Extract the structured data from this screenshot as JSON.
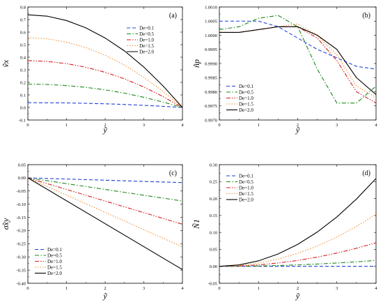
{
  "figure": {
    "background": "#ffffff",
    "panel_count": 4
  },
  "chart_data": [
    {
      "type": "line",
      "panel_label": "(a)",
      "xlabel": "ỹ",
      "ylabel": "ṽx",
      "xlim": [
        0,
        4
      ],
      "ylim": [
        -0.1,
        0.8
      ],
      "xticks": [
        "0",
        "1",
        "2",
        "3",
        "4"
      ],
      "yticks": [
        "-0.1",
        "0.0",
        "0.1",
        "0.2",
        "0.3",
        "0.4",
        "0.5",
        "0.6",
        "0.7",
        "0.8"
      ],
      "grid": false,
      "legend_position": "top-right",
      "series": [
        {
          "name": "De=0.1",
          "color": "#1f3fd6",
          "dash": "dashed",
          "x": [
            0,
            0.5,
            1,
            1.5,
            2,
            2.5,
            3,
            3.5,
            4
          ],
          "y": [
            0.038,
            0.037,
            0.036,
            0.033,
            0.029,
            0.024,
            0.017,
            0.009,
            0.0
          ]
        },
        {
          "name": "De=0.5",
          "color": "#1a8a1a",
          "dash": "dashdot",
          "x": [
            0,
            0.5,
            1,
            1.5,
            2,
            2.5,
            3,
            3.5,
            4
          ],
          "y": [
            0.186,
            0.183,
            0.174,
            0.16,
            0.14,
            0.114,
            0.081,
            0.043,
            0.0
          ]
        },
        {
          "name": "De=1.0",
          "color": "#d81e1e",
          "dash": "dashdotdot",
          "x": [
            0,
            0.5,
            1,
            1.5,
            2,
            2.5,
            3,
            3.5,
            4
          ],
          "y": [
            0.373,
            0.367,
            0.349,
            0.32,
            0.28,
            0.228,
            0.163,
            0.086,
            0.0
          ]
        },
        {
          "name": "De=1.5",
          "color": "#f28c28",
          "dash": "dotted",
          "x": [
            0,
            0.5,
            1,
            1.5,
            2,
            2.5,
            3,
            3.5,
            4
          ],
          "y": [
            0.556,
            0.547,
            0.52,
            0.476,
            0.415,
            0.337,
            0.24,
            0.127,
            0.0
          ]
        },
        {
          "name": "De=2.0",
          "color": "#000000",
          "dash": "solid",
          "x": [
            0,
            0.5,
            1,
            1.5,
            2,
            2.5,
            3,
            3.5,
            4
          ],
          "y": [
            0.738,
            0.727,
            0.692,
            0.634,
            0.553,
            0.45,
            0.322,
            0.171,
            0.0
          ]
        }
      ]
    },
    {
      "type": "line",
      "panel_label": "(b)",
      "xlabel": "ỹ",
      "ylabel": "ñp",
      "xlim": [
        0,
        4
      ],
      "ylim": [
        0.997,
        1.001
      ],
      "xticks": [
        "0",
        "1",
        "2",
        "3",
        "4"
      ],
      "yticks": [
        "0.9970",
        "0.9975",
        "0.9980",
        "0.9985",
        "0.9990",
        "0.9995",
        "1.0000",
        "1.0005",
        "1.0010"
      ],
      "grid": false,
      "legend_position": "bottom-left",
      "series": [
        {
          "name": "De=0.1",
          "color": "#1f3fd6",
          "dash": "dashed",
          "x": [
            0,
            0.5,
            1,
            1.5,
            2,
            2.5,
            3,
            3.5,
            4
          ],
          "y": [
            1.0005,
            1.0005,
            1.0005,
            1.0003,
            0.9999,
            0.9995,
            0.9992,
            0.9989,
            0.9988
          ]
        },
        {
          "name": "De=0.5",
          "color": "#1a8a1a",
          "dash": "dashdot",
          "x": [
            0,
            0.5,
            1,
            1.5,
            2,
            2.5,
            3,
            3.5,
            4
          ],
          "y": [
            1.0002,
            1.0003,
            1.0006,
            1.0007,
            1.0003,
            0.9988,
            0.9976,
            0.9976,
            0.9982
          ]
        },
        {
          "name": "De=1.0",
          "color": "#d81e1e",
          "dash": "dashdotdot",
          "x": [
            0,
            0.5,
            1,
            1.5,
            2,
            2.5,
            3,
            3.5,
            4
          ],
          "y": [
            1.0001,
            1.0001,
            1.0002,
            1.0003,
            1.0003,
            0.9999,
            0.9991,
            0.998,
            0.9976
          ]
        },
        {
          "name": "De=1.5",
          "color": "#f28c28",
          "dash": "dotted",
          "x": [
            0,
            0.5,
            1,
            1.5,
            2,
            2.5,
            3,
            3.5,
            4
          ],
          "y": [
            1.0001,
            1.0001,
            1.0002,
            1.0003,
            1.0004,
            1.0,
            0.9993,
            0.9982,
            0.9978
          ]
        },
        {
          "name": "De=2.0",
          "color": "#000000",
          "dash": "solid",
          "x": [
            0,
            0.5,
            1,
            1.5,
            2,
            2.5,
            3,
            3.5,
            4
          ],
          "y": [
            1.0001,
            1.0001,
            1.0002,
            1.0003,
            1.0003,
            1.0,
            0.9995,
            0.9985,
            0.9979
          ]
        }
      ]
    },
    {
      "type": "line",
      "panel_label": "(c)",
      "xlabel": "ỹ",
      "ylabel": "σ̃xy",
      "xlim": [
        0,
        4
      ],
      "ylim": [
        -0.4,
        0.05
      ],
      "xticks": [
        "0",
        "1",
        "2",
        "3",
        "4"
      ],
      "yticks": [
        "-0.40",
        "-0.35",
        "-0.30",
        "-0.25",
        "-0.20",
        "-0.15",
        "-0.10",
        "-0.05",
        "0.00",
        "0.05"
      ],
      "grid": false,
      "legend_position": "bottom-left",
      "series": [
        {
          "name": "De=0.1",
          "color": "#1f3fd6",
          "dash": "dashed",
          "x": [
            0,
            4
          ],
          "y": [
            0.0,
            -0.018
          ]
        },
        {
          "name": "De=0.5",
          "color": "#1a8a1a",
          "dash": "dashdot",
          "x": [
            0,
            4
          ],
          "y": [
            0.0,
            -0.088
          ]
        },
        {
          "name": "De=1.0",
          "color": "#d81e1e",
          "dash": "dashdotdot",
          "x": [
            0,
            4
          ],
          "y": [
            0.0,
            -0.176
          ]
        },
        {
          "name": "De=1.5",
          "color": "#f28c28",
          "dash": "dotted",
          "x": [
            0,
            4
          ],
          "y": [
            0.0,
            -0.262
          ]
        },
        {
          "name": "De=2.0",
          "color": "#000000",
          "dash": "solid",
          "x": [
            0,
            4
          ],
          "y": [
            0.0,
            -0.348
          ]
        }
      ]
    },
    {
      "type": "line",
      "panel_label": "(d)",
      "xlabel": "ỹ",
      "ylabel": "Ñ1",
      "xlim": [
        0,
        4
      ],
      "ylim": [
        -0.05,
        0.3
      ],
      "xticks": [
        "0",
        "1",
        "2",
        "3",
        "4"
      ],
      "yticks": [
        "-0.05",
        "0.00",
        "0.05",
        "0.10",
        "0.15",
        "0.20",
        "0.25",
        "0.30"
      ],
      "grid": false,
      "legend_position": "top-left",
      "series": [
        {
          "name": "De=0.1",
          "color": "#1f3fd6",
          "dash": "dashed",
          "x": [
            0,
            0.5,
            1,
            1.5,
            2,
            2.5,
            3,
            3.5,
            4
          ],
          "y": [
            0.0,
            0.0,
            0.0,
            0.0,
            0.0,
            0.0,
            0.0,
            0.0,
            0.0
          ]
        },
        {
          "name": "De=0.5",
          "color": "#1a8a1a",
          "dash": "dashdot",
          "x": [
            0,
            0.5,
            1,
            1.5,
            2,
            2.5,
            3,
            3.5,
            4
          ],
          "y": [
            0.0,
            0.0003,
            0.0011,
            0.0024,
            0.0043,
            0.0068,
            0.0098,
            0.0133,
            0.0174
          ]
        },
        {
          "name": "De=1.0",
          "color": "#d81e1e",
          "dash": "dashdotdot",
          "x": [
            0,
            0.5,
            1,
            1.5,
            2,
            2.5,
            3,
            3.5,
            4
          ],
          "y": [
            0.0,
            0.0011,
            0.0043,
            0.0098,
            0.0174,
            0.0272,
            0.0392,
            0.0533,
            0.0696
          ]
        },
        {
          "name": "De=1.5",
          "color": "#f28c28",
          "dash": "dotted",
          "x": [
            0,
            0.5,
            1,
            1.5,
            2,
            2.5,
            3,
            3.5,
            4
          ],
          "y": [
            0.0,
            0.0024,
            0.0096,
            0.0216,
            0.0384,
            0.06,
            0.0864,
            0.1176,
            0.1536
          ]
        },
        {
          "name": "De=2.0",
          "color": "#000000",
          "dash": "solid",
          "x": [
            0,
            0.5,
            1,
            1.5,
            2,
            2.5,
            3,
            3.5,
            4
          ],
          "y": [
            0.0,
            0.0041,
            0.0162,
            0.0365,
            0.0648,
            0.1013,
            0.1458,
            0.1985,
            0.2593
          ]
        }
      ]
    }
  ]
}
